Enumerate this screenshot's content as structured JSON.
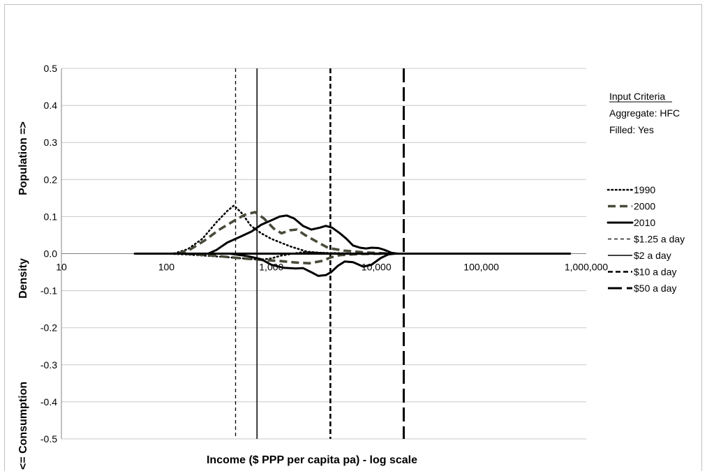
{
  "chart_data": {
    "type": "line",
    "title": "",
    "xlabel": "Income ($ PPP per capita pa) - log scale",
    "ylabel_parts": [
      "<= Consumption",
      "Density",
      "Population =>"
    ],
    "x_scale": "log",
    "xlim": [
      10,
      1000000
    ],
    "ylim": [
      -0.5,
      0.5
    ],
    "x_ticks": [
      10,
      100,
      1000,
      10000,
      100000,
      1000000
    ],
    "x_tick_labels": [
      "10",
      "100",
      "1,000",
      "10,000",
      "100,000",
      "1,000,000"
    ],
    "y_ticks": [
      0.5,
      0.4,
      0.3,
      0.2,
      0.1,
      0.0,
      -0.1,
      -0.2,
      -0.3,
      -0.4,
      -0.5
    ],
    "y_tick_labels": [
      "0.5",
      "0.4",
      "0.3",
      "0.2",
      "0.1",
      "0.0",
      "-0.1",
      "-0.2",
      "-0.3",
      "-0.4",
      "-0.5"
    ],
    "grid": "horizontal",
    "legend_position": "right",
    "input_criteria": {
      "heading": "Input Criteria",
      "aggregate": "Aggregate: HFC",
      "filled": "Filled: Yes"
    },
    "series": [
      {
        "name": "1990",
        "style": "dotted",
        "color": "#000000",
        "population": [
          [
            100,
            0
          ],
          [
            120,
            0.001
          ],
          [
            160,
            0.012
          ],
          [
            220,
            0.04
          ],
          [
            300,
            0.085
          ],
          [
            380,
            0.115
          ],
          [
            440,
            0.13
          ],
          [
            520,
            0.11
          ],
          [
            640,
            0.075
          ],
          [
            800,
            0.055
          ],
          [
            1000,
            0.04
          ],
          [
            1500,
            0.02
          ],
          [
            2200,
            0.005
          ],
          [
            3500,
            0.001
          ],
          [
            10000,
            0
          ]
        ],
        "consumption": [
          [
            100,
            0
          ],
          [
            150,
            -0.002
          ],
          [
            250,
            -0.006
          ],
          [
            400,
            -0.01
          ],
          [
            600,
            -0.014
          ],
          [
            800,
            -0.016
          ],
          [
            1000,
            -0.013
          ],
          [
            1200,
            -0.006
          ],
          [
            1600,
            0
          ],
          [
            2000,
            0.004
          ],
          [
            3000,
            0.002
          ],
          [
            6000,
            0.0005
          ],
          [
            15000,
            0
          ]
        ]
      },
      {
        "name": "2000",
        "style": "dashed",
        "color": "#4a4a3a",
        "population": [
          [
            130,
            0
          ],
          [
            170,
            0.012
          ],
          [
            230,
            0.035
          ],
          [
            320,
            0.065
          ],
          [
            450,
            0.09
          ],
          [
            560,
            0.105
          ],
          [
            700,
            0.112
          ],
          [
            850,
            0.095
          ],
          [
            1050,
            0.068
          ],
          [
            1250,
            0.055
          ],
          [
            1500,
            0.063
          ],
          [
            1750,
            0.065
          ],
          [
            2100,
            0.05
          ],
          [
            2800,
            0.03
          ],
          [
            3500,
            0.015
          ],
          [
            5000,
            0.008
          ],
          [
            8000,
            0.003
          ],
          [
            12000,
            0.001
          ],
          [
            15000,
            0
          ]
        ],
        "consumption": [
          [
            150,
            0
          ],
          [
            300,
            -0.006
          ],
          [
            500,
            -0.012
          ],
          [
            800,
            -0.017
          ],
          [
            1200,
            -0.02
          ],
          [
            1700,
            -0.024
          ],
          [
            2300,
            -0.026
          ],
          [
            3000,
            -0.02
          ],
          [
            3700,
            -0.01
          ],
          [
            4500,
            -0.004
          ],
          [
            7000,
            -0.001
          ],
          [
            12000,
            0
          ]
        ]
      },
      {
        "name": "2010",
        "style": "solid-thick",
        "color": "#000000",
        "flat_range": [
          50,
          700000
        ],
        "population": [
          [
            250,
            0
          ],
          [
            300,
            0.01
          ],
          [
            380,
            0.03
          ],
          [
            500,
            0.045
          ],
          [
            650,
            0.06
          ],
          [
            800,
            0.078
          ],
          [
            1000,
            0.09
          ],
          [
            1200,
            0.1
          ],
          [
            1400,
            0.103
          ],
          [
            1650,
            0.095
          ],
          [
            2000,
            0.075
          ],
          [
            2400,
            0.065
          ],
          [
            2900,
            0.07
          ],
          [
            3300,
            0.075
          ],
          [
            3800,
            0.07
          ],
          [
            4500,
            0.055
          ],
          [
            5200,
            0.04
          ],
          [
            6000,
            0.022
          ],
          [
            7000,
            0.016
          ],
          [
            8000,
            0.014
          ],
          [
            9000,
            0.016
          ],
          [
            10500,
            0.015
          ],
          [
            12000,
            0.01
          ],
          [
            14000,
            0.002
          ],
          [
            16000,
            0
          ]
        ],
        "consumption": [
          [
            400,
            0
          ],
          [
            600,
            -0.007
          ],
          [
            800,
            -0.015
          ],
          [
            1000,
            -0.03
          ],
          [
            1300,
            -0.038
          ],
          [
            1700,
            -0.04
          ],
          [
            2000,
            -0.039
          ],
          [
            2400,
            -0.05
          ],
          [
            2800,
            -0.06
          ],
          [
            3300,
            -0.058
          ],
          [
            3700,
            -0.05
          ],
          [
            4300,
            -0.033
          ],
          [
            5000,
            -0.021
          ],
          [
            6000,
            -0.023
          ],
          [
            7500,
            -0.035
          ],
          [
            9000,
            -0.03
          ],
          [
            11000,
            -0.012
          ],
          [
            13000,
            -0.002
          ],
          [
            15000,
            0
          ]
        ]
      }
    ],
    "poverty_lines": [
      {
        "name": "$1.25 a day",
        "x": 456,
        "style": "dash-fine"
      },
      {
        "name": "$2 a day",
        "x": 730,
        "style": "solid-thin"
      },
      {
        "name": "$10 a day",
        "x": 3650,
        "style": "dash-medium"
      },
      {
        "name": "$50 a day",
        "x": 18250,
        "style": "dash-long"
      }
    ],
    "legend_order": [
      "1990",
      "2000",
      "2010",
      "$1.25 a day",
      "$2 a day",
      "$10 a day",
      "$50 a day"
    ],
    "colors": {
      "grid": "#c8c8c8",
      "axis": "#808080",
      "ink": "#000000",
      "dashed_series": "#4a4a3a"
    }
  }
}
